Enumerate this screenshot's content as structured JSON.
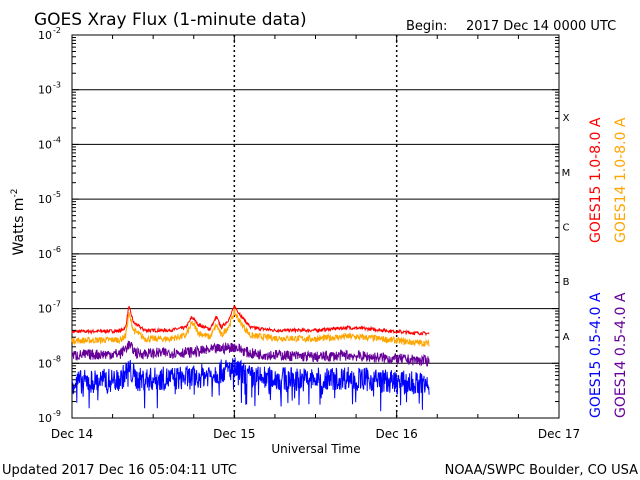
{
  "header": {
    "title": "GOES Xray Flux (1-minute data)",
    "begin_label": "Begin:",
    "begin_value": "2017 Dec 14 0000 UTC"
  },
  "footer": {
    "updated": "Updated 2017 Dec 16 05:04:11 UTC",
    "credit": "NOAA/SWPC Boulder, CO USA"
  },
  "chart_data": {
    "type": "line",
    "title": "GOES Xray Flux (1-minute data)",
    "xlabel": "Universal Time",
    "ylabel": "Watts m",
    "ylabel_exponent": "-2",
    "y_scale": "log",
    "ylim": [
      1e-09,
      0.01
    ],
    "x_range_days": [
      0,
      3
    ],
    "x_ticks": [
      {
        "day": 0,
        "label": "Dec 14"
      },
      {
        "day": 1,
        "label": "Dec 15"
      },
      {
        "day": 2,
        "label": "Dec 16"
      },
      {
        "day": 3,
        "label": "Dec 17"
      }
    ],
    "y_ticks": [
      {
        "exp": -9,
        "label": "10",
        "sup": "-9"
      },
      {
        "exp": -8,
        "label": "10",
        "sup": "-8"
      },
      {
        "exp": -7,
        "label": "10",
        "sup": "-7"
      },
      {
        "exp": -6,
        "label": "10",
        "sup": "-6"
      },
      {
        "exp": -5,
        "label": "10",
        "sup": "-5"
      },
      {
        "exp": -4,
        "label": "10",
        "sup": "-4"
      },
      {
        "exp": -3,
        "label": "10",
        "sup": "-3"
      },
      {
        "exp": -2,
        "label": "10",
        "sup": "-2"
      }
    ],
    "flare_classes": [
      {
        "label": "A",
        "exp": -8
      },
      {
        "label": "B",
        "exp": -7
      },
      {
        "label": "C",
        "exp": -6
      },
      {
        "label": "M",
        "exp": -5
      },
      {
        "label": "X",
        "exp": -4
      }
    ],
    "grid": "horizontal lines at each decade from 1e-8 to 1e-3; dotted vertical lines at day boundaries",
    "series": [
      {
        "name": "GOES15 1.0-8.0 A",
        "color": "#ff0000",
        "points": [
          [
            0.0,
            3.8e-08
          ],
          [
            0.3,
            3.9e-08
          ],
          [
            0.33,
            4.5e-08
          ],
          [
            0.35,
            1.1e-07
          ],
          [
            0.38,
            5.5e-08
          ],
          [
            0.45,
            4e-08
          ],
          [
            0.6,
            4e-08
          ],
          [
            0.7,
            4.5e-08
          ],
          [
            0.74,
            7e-08
          ],
          [
            0.78,
            5e-08
          ],
          [
            0.85,
            4.2e-08
          ],
          [
            0.89,
            7e-08
          ],
          [
            0.92,
            4.5e-08
          ],
          [
            0.97,
            6.5e-08
          ],
          [
            1.0,
            1.1e-07
          ],
          [
            1.04,
            7.5e-08
          ],
          [
            1.1,
            4.5e-08
          ],
          [
            1.25,
            4e-08
          ],
          [
            1.5,
            4e-08
          ],
          [
            1.7,
            4.5e-08
          ],
          [
            1.85,
            4.2e-08
          ],
          [
            2.0,
            3.8e-08
          ],
          [
            2.1,
            3.6e-08
          ],
          [
            2.2,
            3.5e-08
          ]
        ]
      },
      {
        "name": "GOES14 1.0-8.0 A",
        "color": "#ffa500",
        "points": [
          [
            0.0,
            2.6e-08
          ],
          [
            0.3,
            2.7e-08
          ],
          [
            0.33,
            3.2e-08
          ],
          [
            0.35,
            8e-08
          ],
          [
            0.38,
            4e-08
          ],
          [
            0.45,
            2.8e-08
          ],
          [
            0.6,
            2.8e-08
          ],
          [
            0.7,
            3.2e-08
          ],
          [
            0.74,
            5.5e-08
          ],
          [
            0.78,
            3.6e-08
          ],
          [
            0.85,
            3e-08
          ],
          [
            0.89,
            5e-08
          ],
          [
            0.92,
            3.2e-08
          ],
          [
            0.97,
            5e-08
          ],
          [
            1.0,
            8.5e-08
          ],
          [
            1.04,
            5.5e-08
          ],
          [
            1.1,
            3.2e-08
          ],
          [
            1.25,
            2.9e-08
          ],
          [
            1.5,
            2.8e-08
          ],
          [
            1.7,
            3.1e-08
          ],
          [
            1.85,
            2.9e-08
          ],
          [
            2.0,
            2.6e-08
          ],
          [
            2.1,
            2.4e-08
          ],
          [
            2.2,
            2.3e-08
          ]
        ]
      },
      {
        "name": "GOES15 0.5-4.0 A",
        "color": "#0000ff",
        "points": [
          [
            0.0,
            4.5e-09
          ],
          [
            0.3,
            5e-09
          ],
          [
            0.35,
            8e-09
          ],
          [
            0.4,
            5e-09
          ],
          [
            0.75,
            5.5e-09
          ],
          [
            1.0,
            8e-09
          ],
          [
            1.1,
            5.5e-09
          ],
          [
            1.5,
            5e-09
          ],
          [
            1.7,
            5.5e-09
          ],
          [
            2.0,
            4.5e-09
          ],
          [
            2.2,
            4.2e-09
          ]
        ]
      },
      {
        "name": "GOES14 0.5-4.0 A",
        "color": "#660099",
        "points": [
          [
            0.0,
            1.4e-08
          ],
          [
            0.3,
            1.5e-08
          ],
          [
            0.35,
            2.2e-08
          ],
          [
            0.4,
            1.5e-08
          ],
          [
            0.75,
            1.6e-08
          ],
          [
            1.0,
            2e-08
          ],
          [
            1.1,
            1.5e-08
          ],
          [
            1.5,
            1.3e-08
          ],
          [
            1.7,
            1.4e-08
          ],
          [
            2.0,
            1.2e-08
          ],
          [
            2.2,
            1.1e-08
          ]
        ]
      }
    ]
  }
}
